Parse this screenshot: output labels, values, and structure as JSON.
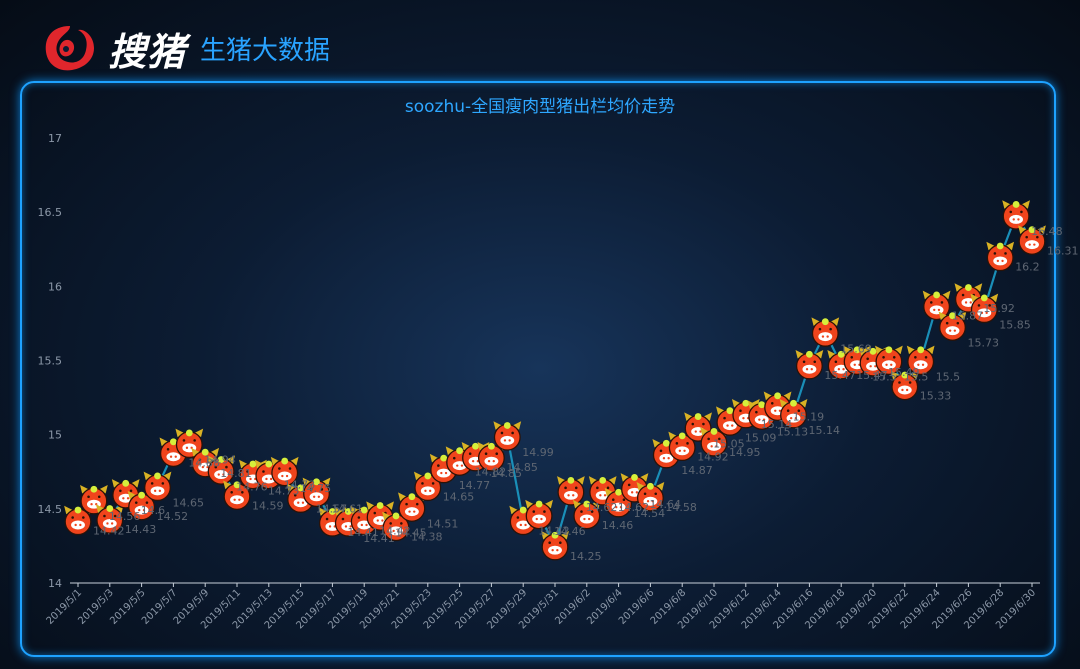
{
  "header": {
    "brand_name": "搜猪",
    "tagline": "生猪大数据"
  },
  "colors": {
    "accent": "#1ea2ff",
    "title": "#2ea7ff",
    "line": "#1a8fb8",
    "marker": "#f0441c",
    "marker_accent": "#d6ef3b",
    "label": "#5e6672"
  },
  "chart_data": {
    "type": "line",
    "title": "soozhu-全国瘦肉型猪出栏均价走势",
    "xlabel": "",
    "ylabel": "",
    "ylim": [
      14,
      17
    ],
    "yticks": [
      14,
      14.5,
      15,
      15.5,
      16,
      16.5,
      17
    ],
    "ytick_labels": [
      "14",
      "14.5",
      "15",
      "15.5",
      "16",
      "16.5",
      "17"
    ],
    "grid": false,
    "legend": "none",
    "marker_icon": "pig-head-icon",
    "xtick_labels": [
      "2019/5/1",
      "2019/5/3",
      "2019/5/5",
      "2019/5/7",
      "2019/5/9",
      "2019/5/11",
      "2019/5/13",
      "2019/5/15",
      "2019/5/17",
      "2019/5/19",
      "2019/5/21",
      "2019/5/23",
      "2019/5/25",
      "2019/5/27",
      "2019/5/29",
      "2019/5/31",
      "2019/6/2",
      "2019/6/4",
      "2019/6/6",
      "2019/6/8",
      "2019/6/10",
      "2019/6/12",
      "2019/6/14",
      "2019/6/16",
      "2019/6/18",
      "2019/6/20",
      "2019/6/22",
      "2019/6/24",
      "2019/6/26",
      "2019/6/28",
      "2019/6/30"
    ],
    "categories": [
      "2019/5/1",
      "2019/5/2",
      "2019/5/3",
      "2019/5/4",
      "2019/5/5",
      "2019/5/6",
      "2019/5/7",
      "2019/5/8",
      "2019/5/9",
      "2019/5/10",
      "2019/5/11",
      "2019/5/12",
      "2019/5/13",
      "2019/5/14",
      "2019/5/15",
      "2019/5/16",
      "2019/5/17",
      "2019/5/18",
      "2019/5/19",
      "2019/5/20",
      "2019/5/21",
      "2019/5/22",
      "2019/5/23",
      "2019/5/24",
      "2019/5/25",
      "2019/5/26",
      "2019/5/27",
      "2019/5/28",
      "2019/5/29",
      "2019/5/30",
      "2019/5/31",
      "2019/6/1",
      "2019/6/2",
      "2019/6/3",
      "2019/6/4",
      "2019/6/5",
      "2019/6/6",
      "2019/6/7",
      "2019/6/8",
      "2019/6/9",
      "2019/6/10",
      "2019/6/11",
      "2019/6/12",
      "2019/6/13",
      "2019/6/14",
      "2019/6/15",
      "2019/6/16",
      "2019/6/17",
      "2019/6/18",
      "2019/6/19",
      "2019/6/20",
      "2019/6/21",
      "2019/6/22",
      "2019/6/23",
      "2019/6/24",
      "2019/6/25",
      "2019/6/26",
      "2019/6/27",
      "2019/6/28",
      "2019/6/29",
      "2019/6/30"
    ],
    "values": [
      14.42,
      14.56,
      14.43,
      14.6,
      14.52,
      14.65,
      14.88,
      14.94,
      14.81,
      14.76,
      14.59,
      14.73,
      14.73,
      14.75,
      14.57,
      14.61,
      14.41,
      14.41,
      14.42,
      14.45,
      14.38,
      14.51,
      14.65,
      14.77,
      14.82,
      14.85,
      14.85,
      14.99,
      14.42,
      14.46,
      14.25,
      14.62,
      14.46,
      14.62,
      14.54,
      14.64,
      14.58,
      14.87,
      14.92,
      15.05,
      14.95,
      15.09,
      15.14,
      15.13,
      15.19,
      15.14,
      15.47,
      15.69,
      15.47,
      15.5,
      15.49,
      15.5,
      15.33,
      15.5,
      15.87,
      15.73,
      15.92,
      15.85,
      16.2,
      16.48,
      16.31
    ]
  }
}
